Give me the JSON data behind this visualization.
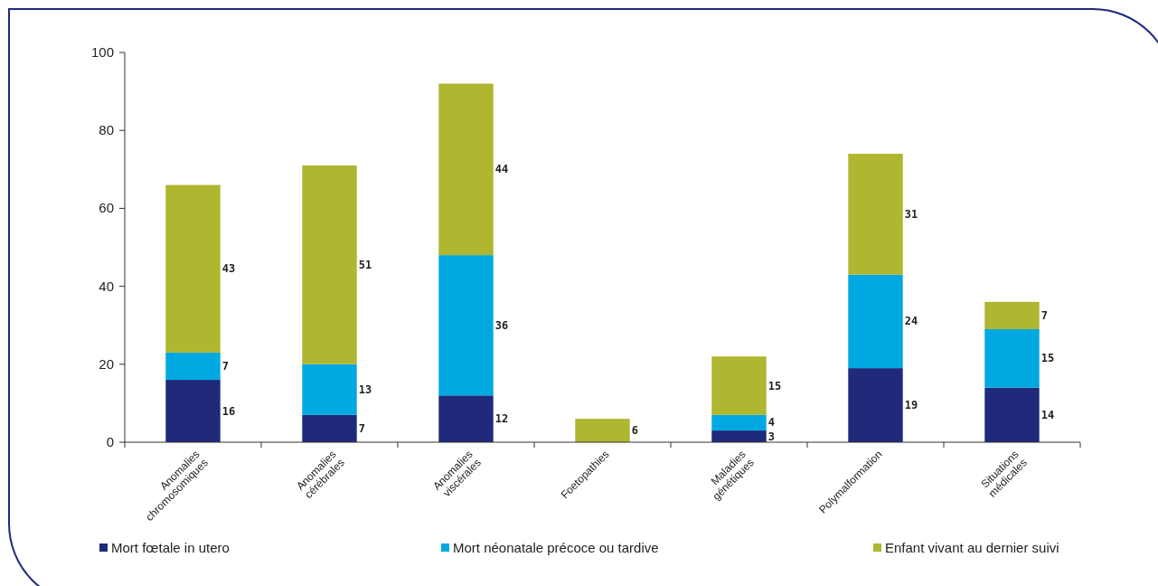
{
  "chart_data": {
    "type": "bar",
    "stacked": true,
    "categories": [
      "Anomalies chromosomiques",
      "Anomalies cérébrales",
      "Anomalies viscérales",
      "Foetopathies",
      "Maladies génétiques",
      "Polymalformation",
      "Situations médicales"
    ],
    "series": [
      {
        "name": "Mort fœtale in utero",
        "color": "#1f2a7a",
        "values": [
          16,
          7,
          12,
          null,
          3,
          19,
          14
        ]
      },
      {
        "name": "Mort néonatale précoce ou tardive",
        "color": "#00a8e1",
        "values": [
          7,
          13,
          36,
          null,
          4,
          24,
          15
        ]
      },
      {
        "name": "Enfant vivant au dernier suivi",
        "color": "#afb62f",
        "values": [
          43,
          51,
          44,
          6,
          15,
          31,
          7
        ]
      }
    ],
    "ylim": [
      0,
      100
    ],
    "yticks": [
      0,
      20,
      40,
      60,
      80,
      100
    ],
    "grid": false,
    "legend": "bottom",
    "data_labels": true,
    "marker": "square"
  }
}
